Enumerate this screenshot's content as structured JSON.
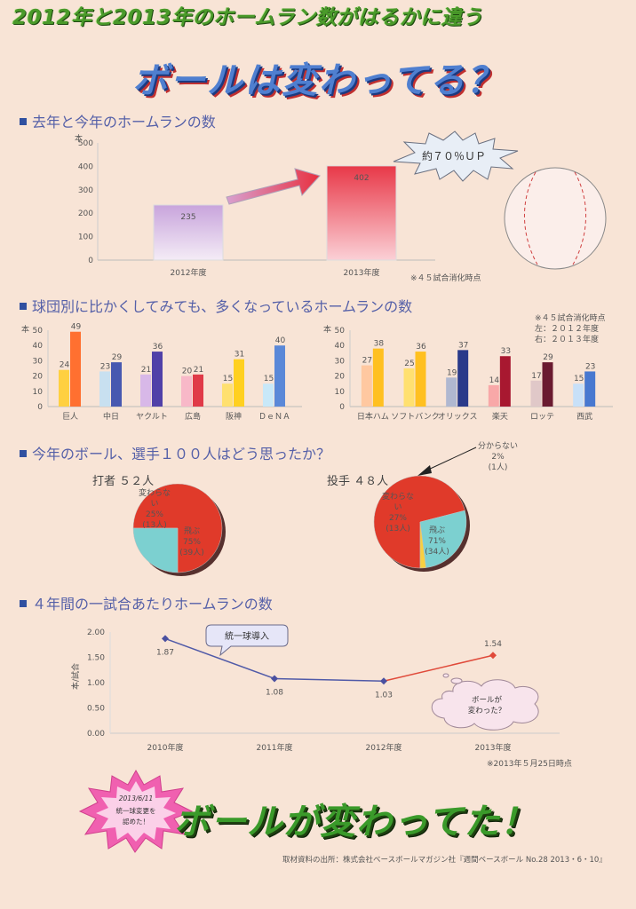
{
  "header": {
    "subtitle": "2012年と2013年のホームラン数がはるかに違う",
    "title": "ボールは変わってる？"
  },
  "section1": {
    "heading": "去年と今年のホームランの数",
    "badge": "約７０％ＵＰ",
    "note": "※４５試合消化時点"
  },
  "section2": {
    "heading": "球団別に比かくしてみても、多くなっているホームランの数",
    "notes": [
      "※４５試合消化時点",
      "左：２０１２年度",
      "右：２０１３年度"
    ]
  },
  "section3": {
    "heading": "今年のボール、選手１００人はどう思ったか？",
    "batter_title": "打者 ５２人",
    "pitcher_title": "投手 ４８人",
    "unknown_label": "分からない",
    "unknown_pct": "2%",
    "unknown_count": "(1人)"
  },
  "section4": {
    "heading": "４年間の一試合あたりホームランの数",
    "callout1": "統一球導入",
    "callout2_line1": "ボールが",
    "callout2_line2": "変わった？",
    "note": "※2013年５月25日時点"
  },
  "footer": {
    "burst_line1": "2013/6/11",
    "burst_line2": "統一球変更を",
    "burst_line3": "認めた！",
    "title": "ボールが変わってた！",
    "source": "取材資料の出所：株式会社ベースボールマガジン社『週間ベースボール No.28 2013・6・10』"
  },
  "colors": {
    "subtitle_green": "#4a9a2a",
    "title_blue": "#4f7fd0",
    "section_blue": "#5560a8",
    "pie_red": "#e03a2a",
    "pie_cyan": "#7cd0d0",
    "line_blue": "#505aa8",
    "line_red": "#e04a3a"
  },
  "chart_data": [
    {
      "type": "bar",
      "id": "total",
      "categories": [
        "2012年度",
        "2013年度"
      ],
      "values": [
        235,
        402
      ],
      "ylabel": "本",
      "ylim": [
        0,
        500
      ],
      "yticks": [
        0,
        100,
        200,
        300,
        400,
        500
      ]
    },
    {
      "type": "bar",
      "id": "central",
      "categories": [
        "巨人",
        "中日",
        "ヤクルト",
        "広島",
        "阪神",
        "ＤｅＮＡ"
      ],
      "series": [
        {
          "name": "２０１２年度",
          "values": [
            24,
            23,
            21,
            20,
            15,
            15
          ]
        },
        {
          "name": "２０１３年度",
          "values": [
            49,
            29,
            36,
            21,
            31,
            40
          ]
        }
      ],
      "ylabel": "本",
      "ylim": [
        0,
        50
      ],
      "yticks": [
        0,
        10,
        20,
        30,
        40,
        50
      ]
    },
    {
      "type": "bar",
      "id": "pacific",
      "categories": [
        "日本ハム",
        "ソフトバンク",
        "オリックス",
        "楽天",
        "ロッテ",
        "西武"
      ],
      "series": [
        {
          "name": "２０１２年度",
          "values": [
            27,
            25,
            19,
            14,
            17,
            15
          ]
        },
        {
          "name": "２０１３年度",
          "values": [
            38,
            36,
            37,
            33,
            29,
            23
          ]
        }
      ],
      "ylabel": "本",
      "ylim": [
        0,
        50
      ],
      "yticks": [
        0,
        10,
        20,
        30,
        40,
        50
      ]
    },
    {
      "type": "pie",
      "id": "batters",
      "slices": [
        {
          "label": "飛ぶ",
          "pct": "75%",
          "count": "(39人)",
          "value": 75
        },
        {
          "label": "変わらない",
          "pct": "25%",
          "count": "(13人)",
          "value": 25
        }
      ]
    },
    {
      "type": "pie",
      "id": "pitchers",
      "slices": [
        {
          "label": "飛ぶ",
          "pct": "71%",
          "count": "(34人)",
          "value": 71
        },
        {
          "label": "変わらない",
          "pct": "27%",
          "count": "(13人)",
          "value": 27
        },
        {
          "label": "分からない",
          "pct": "2%",
          "count": "(1人)",
          "value": 2
        }
      ]
    },
    {
      "type": "line",
      "id": "per_game",
      "categories": [
        "2010年度",
        "2011年度",
        "2012年度",
        "2013年度"
      ],
      "values": [
        1.87,
        1.08,
        1.03,
        1.54
      ],
      "value_labels": [
        "1.87",
        "1.08",
        "1.03",
        "1.54"
      ],
      "ylabel": "本/試合",
      "ylim": [
        0,
        2.0
      ],
      "yticks": [
        "0.00",
        "0.50",
        "1.00",
        "1.50",
        "2.00"
      ]
    }
  ]
}
